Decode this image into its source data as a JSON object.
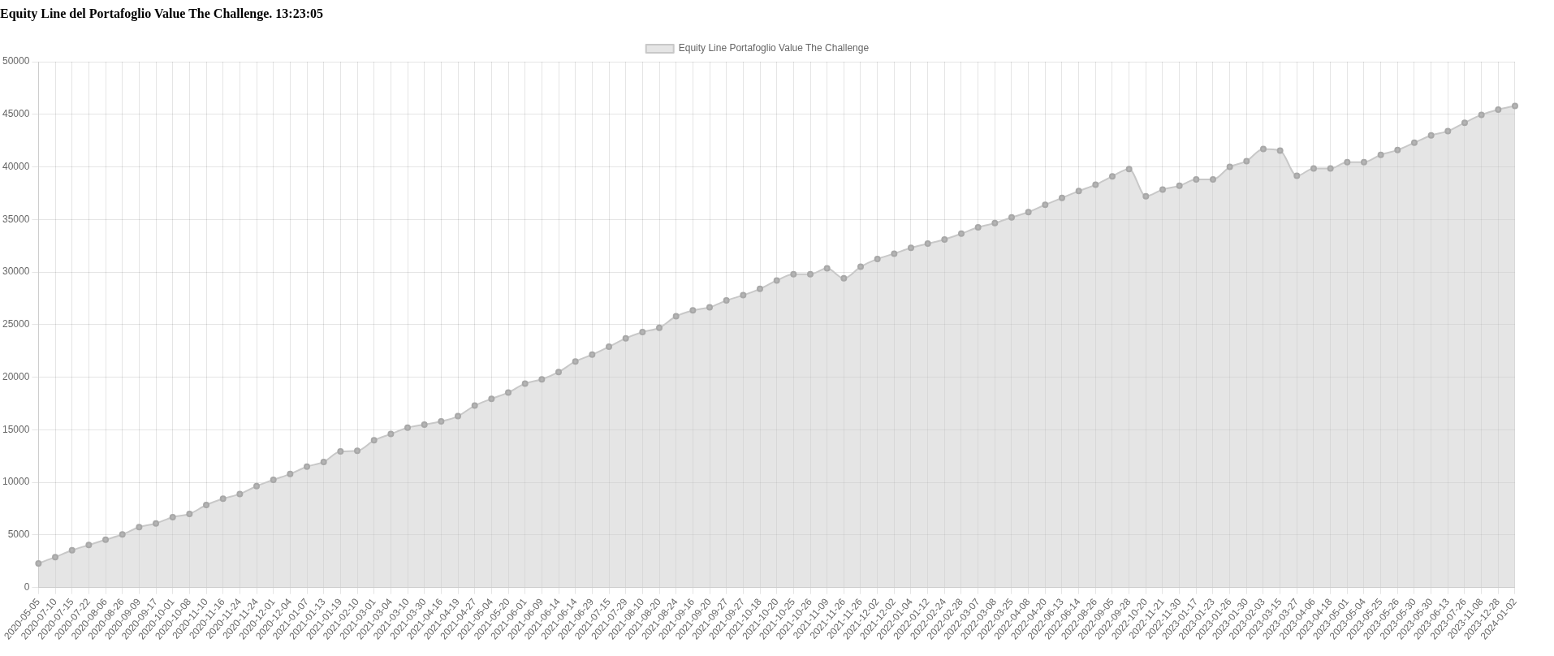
{
  "chart_data": {
    "type": "area",
    "title": "Equity Line del Portafoglio Value The Challenge. 13:23:05",
    "categories": [
      "2020-05-05",
      "2020-07-10",
      "2020-07-15",
      "2020-07-22",
      "2020-08-06",
      "2020-08-26",
      "2020-09-09",
      "2020-09-17",
      "2020-10-01",
      "2020-10-08",
      "2020-11-10",
      "2020-11-16",
      "2020-11-24",
      "2020-11-24",
      "2020-12-01",
      "2020-12-04",
      "2021-01-07",
      "2021-01-13",
      "2021-01-19",
      "2021-02-10",
      "2021-03-01",
      "2021-03-04",
      "2021-03-10",
      "2021-03-30",
      "2021-04-16",
      "2021-04-19",
      "2021-04-27",
      "2021-05-04",
      "2021-05-20",
      "2021-06-01",
      "2021-06-09",
      "2021-06-14",
      "2021-06-14",
      "2021-06-29",
      "2021-07-15",
      "2021-07-29",
      "2021-08-10",
      "2021-08-20",
      "2021-08-24",
      "2021-09-16",
      "2021-09-20",
      "2021-09-27",
      "2021-09-27",
      "2021-10-18",
      "2021-10-20",
      "2021-10-25",
      "2021-10-26",
      "2021-11-09",
      "2021-11-26",
      "2021-11-26",
      "2021-12-02",
      "2021-12-02",
      "2022-01-04",
      "2022-01-12",
      "2022-02-24",
      "2022-02-28",
      "2022-03-07",
      "2022-03-08",
      "2022-03-25",
      "2022-04-08",
      "2022-04-20",
      "2022-06-13",
      "2022-06-14",
      "2022-08-26",
      "2022-09-05",
      "2022-09-28",
      "2022-10-20",
      "2022-11-21",
      "2022-11-30",
      "2023-01-17",
      "2023-01-23",
      "2023-01-26",
      "2023-01-30",
      "2023-02-03",
      "2023-03-15",
      "2023-03-27",
      "2023-04-06",
      "2023-04-18",
      "2023-05-01",
      "2023-05-04",
      "2023-05-25",
      "2023-05-26",
      "2023-05-30",
      "2023-05-30",
      "2023-06-13",
      "2023-07-26",
      "2023-11-08",
      "2023-12-28",
      "2024-01-02"
    ],
    "series": [
      {
        "name": "Equity Line Portafoglio Value The Challenge",
        "color": "#c8c8c8",
        "values": [
          2300,
          2900,
          3550,
          4050,
          4550,
          5050,
          5750,
          6100,
          6700,
          7000,
          7850,
          8450,
          8900,
          9650,
          10250,
          10800,
          11500,
          11950,
          12950,
          13000,
          14000,
          14600,
          15200,
          15500,
          15800,
          16300,
          17300,
          17950,
          18550,
          19400,
          19800,
          20500,
          21500,
          22150,
          22900,
          23700,
          24300,
          24700,
          25800,
          26350,
          26650,
          27300,
          27800,
          28400,
          29200,
          29800,
          29800,
          30350,
          29400,
          30500,
          31250,
          31750,
          32300,
          32700,
          33100,
          33650,
          34250,
          34650,
          35200,
          35700,
          36400,
          37050,
          37700,
          38300,
          39100,
          39800,
          37200,
          37850,
          38200,
          38800,
          38800,
          40000,
          40550,
          41700,
          41550,
          39150,
          39850,
          39850,
          40450,
          40450,
          41150,
          41600,
          42300,
          43000,
          43400,
          44200,
          44950,
          45450,
          45800
        ]
      }
    ],
    "ylim": [
      0,
      50000
    ],
    "yticks": [
      0,
      5000,
      10000,
      15000,
      20000,
      25000,
      30000,
      35000,
      40000,
      45000,
      50000
    ],
    "grid": true,
    "legend": "top",
    "marker": "circle",
    "line_style": "solid"
  }
}
